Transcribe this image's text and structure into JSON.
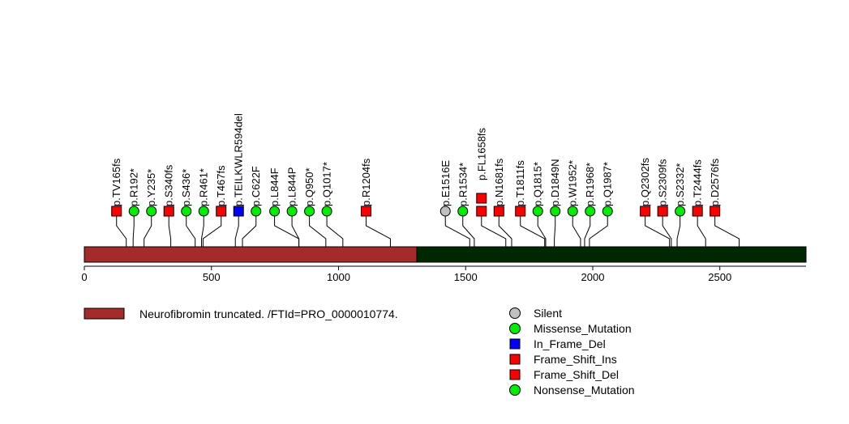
{
  "chart_data": {
    "type": "lollipop",
    "protein_length": 2839,
    "axis": {
      "min": 0,
      "max": 2839,
      "ticks": [
        0,
        500,
        1000,
        1500,
        2000,
        2500
      ]
    },
    "domains": [
      {
        "name": "Neurofibromin truncated. /FTId=PRO_0000010774.",
        "start": 1,
        "end": 1308,
        "color": "#a52a2a"
      },
      {
        "name": "",
        "start": 1308,
        "end": 2839,
        "color": "#002800"
      }
    ],
    "mutations": [
      {
        "label": "p.TV165fs",
        "pos": 165,
        "type": "Frame_Shift_Del",
        "count": 1
      },
      {
        "label": "p.R192*",
        "pos": 192,
        "type": "Nonsense_Mutation",
        "count": 1
      },
      {
        "label": "p.Y235*",
        "pos": 235,
        "type": "Nonsense_Mutation",
        "count": 1
      },
      {
        "label": "p.S340fs",
        "pos": 340,
        "type": "Frame_Shift_Del",
        "count": 1
      },
      {
        "label": "p.S436*",
        "pos": 436,
        "type": "Nonsense_Mutation",
        "count": 1
      },
      {
        "label": "p.R461*",
        "pos": 461,
        "type": "Nonsense_Mutation",
        "count": 1
      },
      {
        "label": "p.T467fs",
        "pos": 467,
        "type": "Frame_Shift_Del",
        "count": 1
      },
      {
        "label": "p.TEILKWLR594del",
        "pos": 594,
        "type": "In_Frame_Del",
        "count": 1
      },
      {
        "label": "p.C622F",
        "pos": 622,
        "type": "Missense_Mutation",
        "count": 1
      },
      {
        "label": "p.L844F",
        "pos": 844,
        "type": "Missense_Mutation",
        "count": 1
      },
      {
        "label": "p.L844P",
        "pos": 844,
        "type": "Missense_Mutation",
        "count": 1
      },
      {
        "label": "p.Q950*",
        "pos": 950,
        "type": "Nonsense_Mutation",
        "count": 1
      },
      {
        "label": "p.Q1017*",
        "pos": 1017,
        "type": "Nonsense_Mutation",
        "count": 1
      },
      {
        "label": "p.R1204fs",
        "pos": 1204,
        "type": "Frame_Shift_Del",
        "count": 1
      },
      {
        "label": "p.E1516E",
        "pos": 1516,
        "type": "Silent",
        "count": 1
      },
      {
        "label": "p.R1534*",
        "pos": 1534,
        "type": "Nonsense_Mutation",
        "count": 1
      },
      {
        "label": "p.FL1658fs",
        "pos": 1658,
        "type": "Frame_Shift_Del",
        "count": 2
      },
      {
        "label": "p.N1681fs",
        "pos": 1681,
        "type": "Frame_Shift_Ins",
        "count": 1
      },
      {
        "label": "p.T1811fs",
        "pos": 1811,
        "type": "Frame_Shift_Del",
        "count": 1
      },
      {
        "label": "p.Q1815*",
        "pos": 1815,
        "type": "Nonsense_Mutation",
        "count": 1
      },
      {
        "label": "p.D1849N",
        "pos": 1849,
        "type": "Missense_Mutation",
        "count": 1
      },
      {
        "label": "p.W1952*",
        "pos": 1952,
        "type": "Nonsense_Mutation",
        "count": 1
      },
      {
        "label": "p.R1968*",
        "pos": 1968,
        "type": "Nonsense_Mutation",
        "count": 1
      },
      {
        "label": "p.Q1987*",
        "pos": 1987,
        "type": "Nonsense_Mutation",
        "count": 1
      },
      {
        "label": "p.Q2302fs",
        "pos": 2302,
        "type": "Frame_Shift_Del",
        "count": 1
      },
      {
        "label": "p.S2309fs",
        "pos": 2309,
        "type": "Frame_Shift_Del",
        "count": 1
      },
      {
        "label": "p.S2332*",
        "pos": 2332,
        "type": "Nonsense_Mutation",
        "count": 1
      },
      {
        "label": "p.T2444fs",
        "pos": 2444,
        "type": "Frame_Shift_Del",
        "count": 1
      },
      {
        "label": "p.D2576fs",
        "pos": 2576,
        "type": "Frame_Shift_Del",
        "count": 1
      }
    ],
    "legend": [
      {
        "label": "Silent",
        "shape": "circle",
        "color": "#c0c0c0"
      },
      {
        "label": "Missense_Mutation",
        "shape": "circle",
        "color": "#00ee00"
      },
      {
        "label": "In_Frame_Del",
        "shape": "square",
        "color": "#0000ff"
      },
      {
        "label": "Frame_Shift_Ins",
        "shape": "square",
        "color": "#ff0000"
      },
      {
        "label": "Frame_Shift_Del",
        "shape": "square",
        "color": "#ff0000"
      },
      {
        "label": "Nonsense_Mutation",
        "shape": "circle",
        "color": "#00ee00"
      }
    ],
    "type_styles": {
      "Silent": {
        "shape": "circle",
        "color": "#c0c0c0"
      },
      "Missense_Mutation": {
        "shape": "circle",
        "color": "#00ee00"
      },
      "Nonsense_Mutation": {
        "shape": "circle",
        "color": "#00ee00"
      },
      "In_Frame_Del": {
        "shape": "square",
        "color": "#0000ff"
      },
      "Frame_Shift_Ins": {
        "shape": "square",
        "color": "#ff0000"
      },
      "Frame_Shift_Del": {
        "shape": "square",
        "color": "#ff0000"
      }
    }
  }
}
